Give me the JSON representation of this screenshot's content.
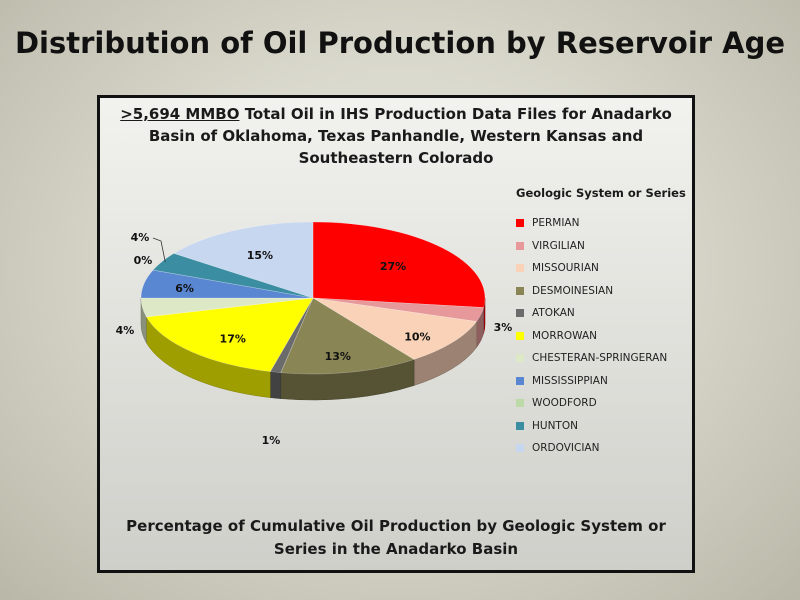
{
  "slide_title": "Distribution of Oil Production by Reservoir Age",
  "chart_title": {
    "highlight": ">5,694 MMBO",
    "rest": " Total Oil in IHS Production Data Files for Anadarko Basin of Oklahoma, Texas Panhandle, Western Kansas and Southeastern Colorado"
  },
  "footer": "Percentage of Cumulative Oil Production by Geologic System or Series in the Anadarko Basin",
  "chart_data": {
    "type": "pie",
    "legend_title": "Geologic System or Series",
    "legend_position": "right",
    "slices": [
      {
        "label": "PERMIAN",
        "value": 27,
        "display": "27%",
        "color": "#ff0000"
      },
      {
        "label": "VIRGILIAN",
        "value": 3,
        "display": "3%",
        "color": "#e6989a"
      },
      {
        "label": "MISSOURIAN",
        "value": 10,
        "display": "10%",
        "color": "#fad2b8"
      },
      {
        "label": "DESMOINESIAN",
        "value": 13,
        "display": "13%",
        "color": "#8a8554"
      },
      {
        "label": "ATOKAN",
        "value": 1,
        "display": "1%",
        "color": "#6b6b6b"
      },
      {
        "label": "MORROWAN",
        "value": 17,
        "display": "17%",
        "color": "#ffff00"
      },
      {
        "label": "CHESTERAN-SPRINGERAN",
        "value": 4,
        "display": "4%",
        "color": "#dde9c6"
      },
      {
        "label": "MISSISSIPPIAN",
        "value": 6,
        "display": "6%",
        "color": "#5a87d2"
      },
      {
        "label": "WOODFORD",
        "value": 0,
        "display": "0%",
        "color": "#bcd9a8"
      },
      {
        "label": "HUNTON",
        "value": 4,
        "display": "4%",
        "color": "#3b8ea2"
      },
      {
        "label": "ORDOVICIAN",
        "value": 15,
        "display": "15%",
        "color": "#c6d7ef"
      }
    ]
  }
}
